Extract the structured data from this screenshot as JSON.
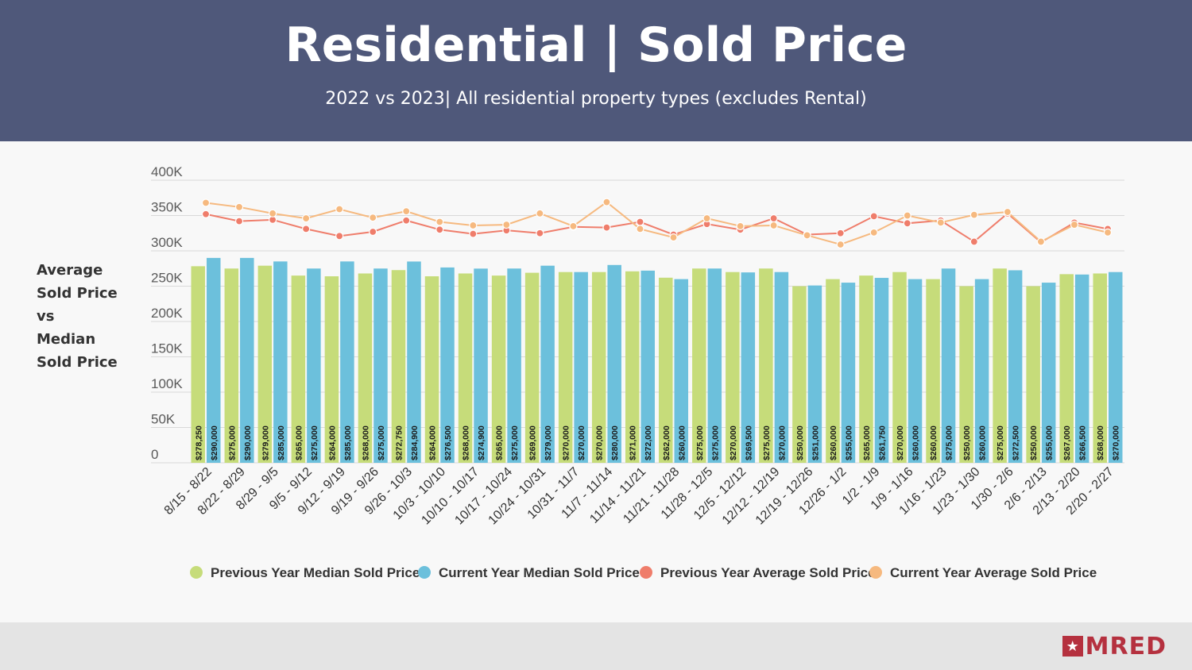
{
  "header": {
    "title": "Residential | Sold Price",
    "subtitle": "2022 vs 2023| All residential property types (excludes Rental)"
  },
  "side_label": [
    "Average",
    "Sold Price",
    "vs",
    "Median",
    "Sold Price"
  ],
  "logo": {
    "text": "MRED",
    "mark": "star-icon"
  },
  "colors": {
    "header_bg": "#4f587a",
    "prev_median": "#c6dc7a",
    "curr_median": "#6cc0dc",
    "prev_avg": "#ef7d6b",
    "curr_avg": "#f6b97f",
    "brand": "#b5313f"
  },
  "chart_data": {
    "type": "bar+line",
    "ylim": [
      0,
      400000
    ],
    "yticks": [
      0,
      50000,
      100000,
      150000,
      200000,
      250000,
      300000,
      350000,
      400000
    ],
    "ytick_labels": [
      "0",
      "50K",
      "100K",
      "150K",
      "200K",
      "250K",
      "300K",
      "350K",
      "400K"
    ],
    "categories": [
      "8/15 - 8/22",
      "8/22 - 8/29",
      "8/29 - 9/5",
      "9/5 - 9/12",
      "9/12 - 9/19",
      "9/19 - 9/26",
      "9/26 - 10/3",
      "10/3 - 10/10",
      "10/10 - 10/17",
      "10/17 - 10/24",
      "10/24 - 10/31",
      "10/31 - 11/7",
      "11/7 - 11/14",
      "11/14 - 11/21",
      "11/21 - 11/28",
      "11/28 - 12/5",
      "12/5 - 12/12",
      "12/12 - 12/19",
      "12/19 - 12/26",
      "12/26 - 1/2",
      "1/2 - 1/9",
      "1/9 - 1/16",
      "1/16 - 1/23",
      "1/23 - 1/30",
      "1/30 - 2/6",
      "2/6 - 2/13",
      "2/13 - 2/20",
      "2/20 - 2/27"
    ],
    "series": [
      {
        "name": "Previous Year Median Sold Price",
        "kind": "bar",
        "values": [
          278250,
          275000,
          279000,
          265000,
          264000,
          268000,
          272750,
          264000,
          268000,
          265000,
          269000,
          270000,
          270000,
          271000,
          262000,
          275000,
          270000,
          275000,
          250000,
          260000,
          265000,
          270000,
          260000,
          250000,
          275000,
          250000,
          267000,
          268000
        ],
        "labels": [
          "$278,250",
          "$275,000",
          "$279,000",
          "$265,000",
          "$264,000",
          "$268,000",
          "$272,750",
          "$264,000",
          "$268,000",
          "$265,000",
          "$269,000",
          "$270,000",
          "$270,000",
          "$271,000",
          "$262,000",
          "$275,000",
          "$270,000",
          "$275,000",
          "$250,000",
          "$260,000",
          "$265,000",
          "$270,000",
          "$260,000",
          "$250,000",
          "$275,000",
          "$250,000",
          "$267,000",
          "$268,000"
        ]
      },
      {
        "name": "Current Year Median Sold Price",
        "kind": "bar",
        "values": [
          290000,
          290000,
          285000,
          275000,
          285000,
          275000,
          284900,
          276500,
          274900,
          275000,
          279000,
          270000,
          280000,
          272000,
          260000,
          275000,
          269500,
          270000,
          251000,
          255000,
          261750,
          260000,
          275000,
          260000,
          272500,
          255000,
          266500,
          270000
        ],
        "labels": [
          "$290,000",
          "$290,000",
          "$285,000",
          "$275,000",
          "$285,000",
          "$275,000",
          "$284,900",
          "$276,500",
          "$274,900",
          "$275,000",
          "$279,000",
          "$270,000",
          "$280,000",
          "$272,000",
          "$260,000",
          "$275,000",
          "$269,500",
          "$270,000",
          "$251,000",
          "$255,000",
          "$261,750",
          "$260,000",
          "$275,000",
          "$260,000",
          "$272,500",
          "$255,000",
          "$266,500",
          "$270,000"
        ]
      },
      {
        "name": "Previous Year Average Sold Price",
        "kind": "line",
        "values": [
          352000,
          342000,
          344000,
          331000,
          321000,
          327000,
          343000,
          330000,
          324000,
          329000,
          325000,
          334000,
          333000,
          341000,
          323000,
          338000,
          330000,
          346000,
          323000,
          325000,
          349000,
          339000,
          343000,
          313000,
          353000,
          312000,
          340000,
          331000
        ]
      },
      {
        "name": "Current Year Average Sold Price",
        "kind": "line",
        "values": [
          368000,
          362000,
          353000,
          346000,
          359000,
          347000,
          356000,
          341000,
          336000,
          337000,
          353000,
          335000,
          369000,
          331000,
          319000,
          346000,
          335000,
          336000,
          322000,
          309000,
          326000,
          350000,
          340000,
          351000,
          355000,
          313000,
          337000,
          326000
        ]
      }
    ]
  }
}
